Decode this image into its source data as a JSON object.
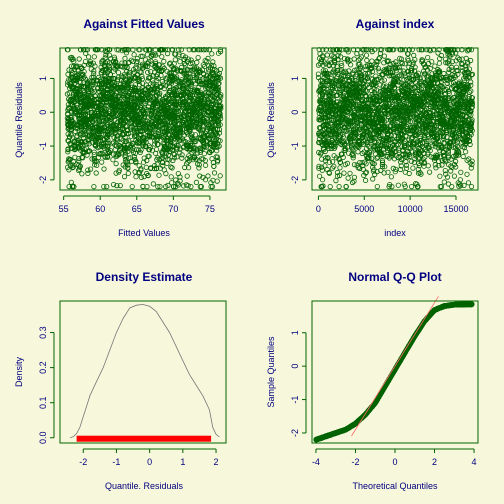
{
  "colors": {
    "background": "#f7f7dc",
    "frame": "#006400",
    "points": "#006400",
    "text": "#000080",
    "rug": "#ff0000",
    "density_line": "#777777",
    "qq_line": "#ff6666"
  },
  "chart_data": [
    {
      "type": "scatter",
      "title": "Against Fitted Values",
      "xlabel": "Fitted Values",
      "ylabel": "Quantile Residuals",
      "xlim": [
        54.5,
        77.2
      ],
      "ylim": [
        -2.3,
        1.9
      ],
      "xticks": [
        55,
        60,
        65,
        70,
        75
      ],
      "yticks": [
        -2,
        -1,
        0,
        1
      ],
      "x_range_of_points": [
        55.5,
        76.5
      ],
      "y_range_of_points": [
        -2.2,
        1.85
      ],
      "n_points_approx": 17000
    },
    {
      "type": "scatter",
      "title": "Against  index",
      "xlabel": "index",
      "ylabel": "Quantile Residuals",
      "xlim": [
        -700,
        17400
      ],
      "ylim": [
        -2.3,
        1.9
      ],
      "xticks": [
        0,
        5000,
        10000,
        15000
      ],
      "yticks": [
        -2,
        -1,
        0,
        1
      ],
      "x_range_of_points": [
        0,
        16800
      ],
      "y_range_of_points": [
        -2.2,
        1.85
      ],
      "n_points_approx": 17000
    },
    {
      "type": "line",
      "title": "Density Estimate",
      "xlabel": "Quantile. Residuals",
      "ylabel": "Density",
      "xlim": [
        -2.7,
        2.3
      ],
      "ylim": [
        -0.015,
        0.39
      ],
      "xticks": [
        -2,
        -1,
        0,
        1,
        2
      ],
      "yticks": [
        0.0,
        0.1,
        0.2,
        0.3
      ],
      "x": [
        -2.4,
        -2.3,
        -2.2,
        -2.1,
        -2.0,
        -1.9,
        -1.8,
        -1.6,
        -1.4,
        -1.2,
        -1.0,
        -0.8,
        -0.6,
        -0.4,
        -0.2,
        0.0,
        0.2,
        0.4,
        0.6,
        0.8,
        1.0,
        1.2,
        1.4,
        1.6,
        1.7,
        1.8,
        1.85,
        1.9,
        2.0,
        2.1
      ],
      "y": [
        0.0,
        0.003,
        0.012,
        0.03,
        0.06,
        0.09,
        0.12,
        0.16,
        0.2,
        0.25,
        0.3,
        0.34,
        0.37,
        0.378,
        0.38,
        0.375,
        0.36,
        0.33,
        0.3,
        0.26,
        0.22,
        0.18,
        0.15,
        0.12,
        0.1,
        0.08,
        0.055,
        0.03,
        0.01,
        0.002
      ],
      "rug_range": [
        -2.2,
        1.85
      ]
    },
    {
      "type": "scatter",
      "title": "Normal Q-Q Plot",
      "xlabel": "Theoretical Quantiles",
      "ylabel": "Sample Quantiles",
      "xlim": [
        -4.2,
        4.2
      ],
      "ylim": [
        -2.3,
        1.95
      ],
      "xticks": [
        -4,
        -2,
        0,
        2,
        4
      ],
      "yticks": [
        -2,
        -1,
        0,
        1
      ],
      "x": [
        -4.0,
        -3.5,
        -3.0,
        -2.5,
        -2.0,
        -1.5,
        -1.0,
        -0.5,
        0.0,
        0.5,
        1.0,
        1.5,
        2.0,
        2.5,
        3.0,
        3.5,
        3.9
      ],
      "y": [
        -2.2,
        -2.1,
        -2.0,
        -1.9,
        -1.72,
        -1.45,
        -1.1,
        -0.6,
        -0.1,
        0.4,
        0.9,
        1.35,
        1.68,
        1.8,
        1.84,
        1.85,
        1.85
      ],
      "reference_line": {
        "intercept": 0.0,
        "slope": 0.95
      }
    }
  ]
}
